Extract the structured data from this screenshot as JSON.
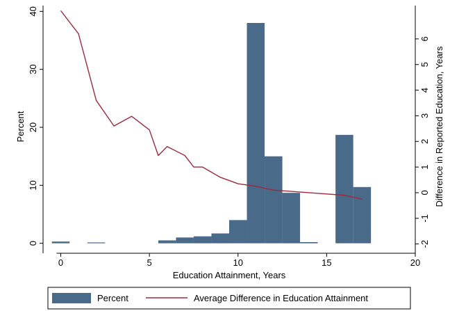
{
  "chart_data": {
    "type": "bar+line",
    "xlabel": "Education Attainment, Years",
    "ylabel_left": "Percent",
    "ylabel_right": "Difference in Reported Education, Years",
    "xlim": [
      -1,
      20
    ],
    "x_ticks": [
      0,
      5,
      10,
      15,
      20
    ],
    "ylim_left": [
      -1,
      41
    ],
    "y_ticks_left": [
      0,
      10,
      20,
      30,
      40
    ],
    "ylim_right": [
      -2.2,
      7.3
    ],
    "y_ticks_right": [
      -2,
      -1,
      0,
      1,
      2,
      3,
      4,
      5,
      6
    ],
    "grid": false,
    "legend_position": "bottom",
    "bars": {
      "name": "Percent",
      "color": "#4a6a8a",
      "width": 1,
      "x": [
        0,
        2,
        6,
        7,
        8,
        9,
        10,
        11,
        12,
        13,
        14,
        16,
        17
      ],
      "values": [
        0.3,
        0.15,
        0.5,
        1.0,
        1.2,
        1.7,
        4.0,
        38.0,
        15.0,
        8.7,
        0.2,
        18.7,
        9.7
      ]
    },
    "line": {
      "name": "Average Difference in Education Attainment",
      "color": "#a0283c",
      "x": [
        0,
        1,
        2,
        3,
        4,
        5,
        5.5,
        6,
        7,
        7.5,
        8,
        9,
        10,
        11,
        12,
        13,
        14,
        15,
        16,
        17
      ],
      "values": [
        7.1,
        6.2,
        3.6,
        2.6,
        2.98,
        2.45,
        1.45,
        1.8,
        1.45,
        1.0,
        1.0,
        0.6,
        0.35,
        0.25,
        0.1,
        0.05,
        0.0,
        -0.05,
        -0.1,
        -0.25
      ]
    }
  }
}
